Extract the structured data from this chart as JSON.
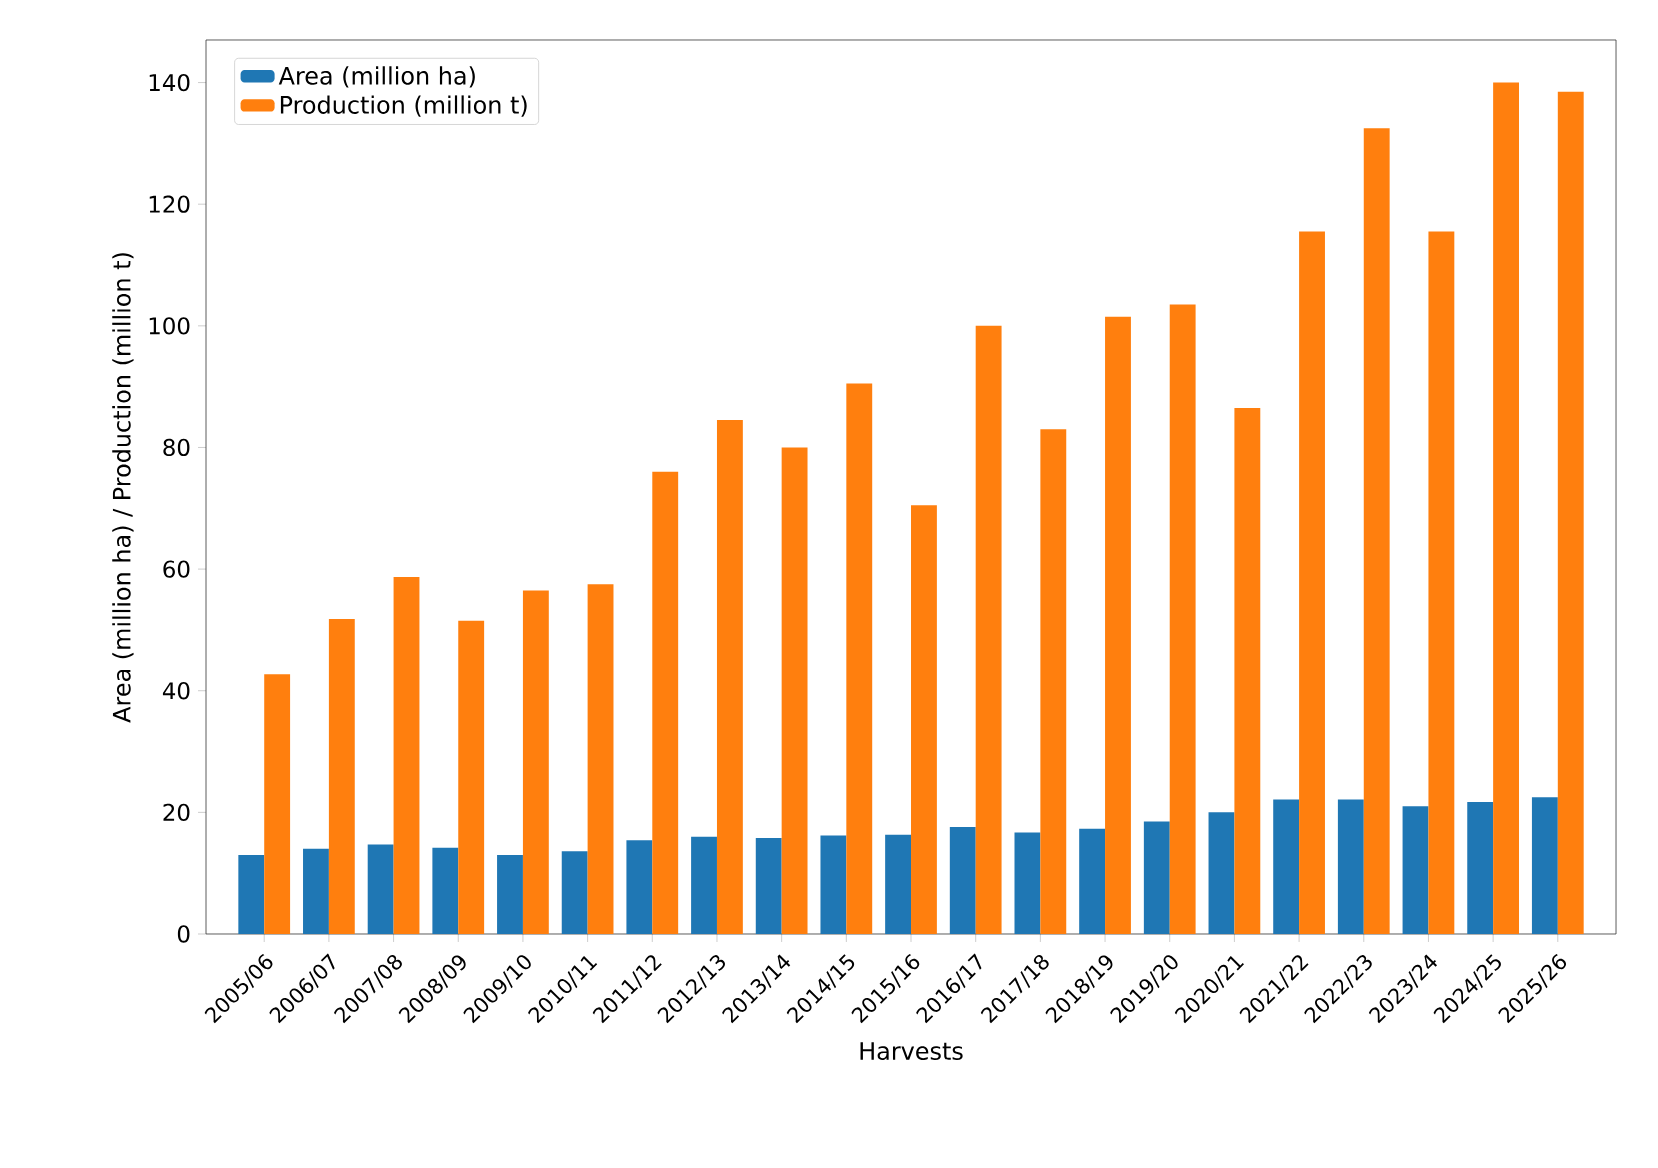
{
  "chart_data": {
    "type": "bar",
    "xlabel": "Harvests",
    "ylabel": "Area (million ha) / Production (million t)",
    "categories": [
      "2005/06",
      "2006/07",
      "2007/08",
      "2008/09",
      "2009/10",
      "2010/11",
      "2011/12",
      "2012/13",
      "2013/14",
      "2014/15",
      "2015/16",
      "2016/17",
      "2017/18",
      "2018/19",
      "2019/20",
      "2020/21",
      "2021/22",
      "2022/23",
      "2023/24",
      "2024/25",
      "2025/26"
    ],
    "series": [
      {
        "name": "Area (million ha)",
        "color": "#1f77b4",
        "values": [
          13,
          14,
          14.7,
          14.2,
          13,
          13.6,
          15.4,
          16,
          15.8,
          16.2,
          16.3,
          17.6,
          16.7,
          17.3,
          18.5,
          20,
          22.1,
          22.1,
          21,
          21.7,
          22.5
        ]
      },
      {
        "name": "Production (million t)",
        "color": "#ff7f0e",
        "values": [
          42.7,
          51.8,
          58.7,
          51.5,
          56.5,
          57.5,
          76,
          84.5,
          80,
          90.5,
          70.5,
          100,
          83,
          101.5,
          103.5,
          86.5,
          115.5,
          132.5,
          115.5,
          140,
          138.5
        ]
      }
    ],
    "ylim": [
      0,
      147
    ],
    "yticks": [
      0,
      20,
      40,
      60,
      80,
      100,
      120,
      140
    ],
    "legend": "top left"
  }
}
